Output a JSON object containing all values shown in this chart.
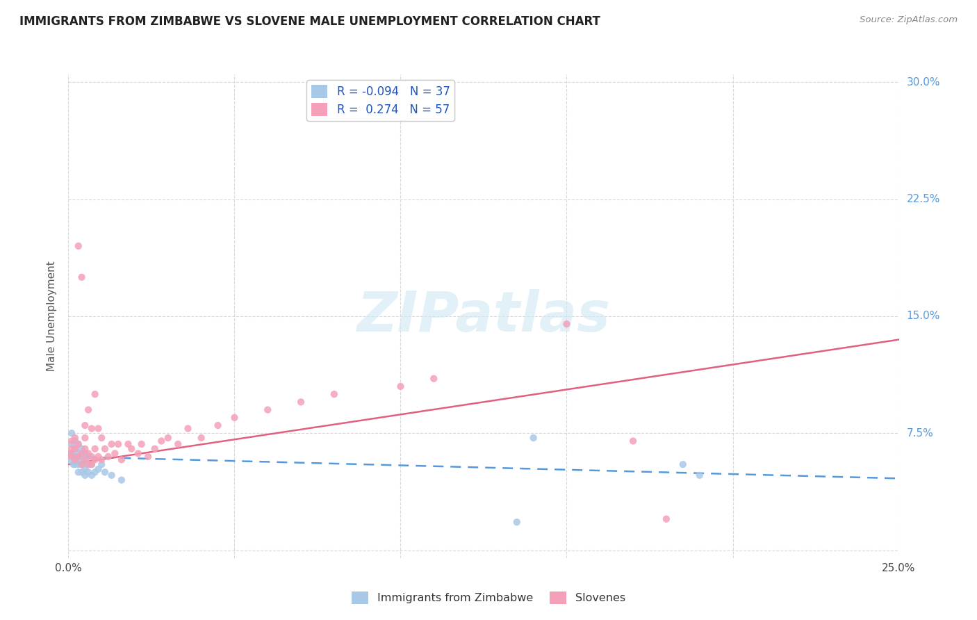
{
  "title": "IMMIGRANTS FROM ZIMBABWE VS SLOVENE MALE UNEMPLOYMENT CORRELATION CHART",
  "source": "Source: ZipAtlas.com",
  "ylabel": "Male Unemployment",
  "legend_label1": "Immigrants from Zimbabwe",
  "legend_label2": "Slovenes",
  "R1": -0.094,
  "N1": 37,
  "R2": 0.274,
  "N2": 57,
  "color_blue": "#a8c8e8",
  "color_pink": "#f4a0b8",
  "line_color_blue": "#5599dd",
  "line_color_pink": "#e06080",
  "watermark_text": "ZIPatlas",
  "xlim": [
    0.0,
    0.25
  ],
  "ylim": [
    -0.005,
    0.305
  ],
  "blue_scatter_x": [
    0.0005,
    0.001,
    0.001,
    0.001,
    0.0015,
    0.002,
    0.002,
    0.002,
    0.002,
    0.003,
    0.003,
    0.003,
    0.003,
    0.003,
    0.004,
    0.004,
    0.004,
    0.004,
    0.005,
    0.005,
    0.005,
    0.005,
    0.006,
    0.006,
    0.006,
    0.007,
    0.007,
    0.008,
    0.009,
    0.01,
    0.011,
    0.013,
    0.016,
    0.14,
    0.185,
    0.135,
    0.19
  ],
  "blue_scatter_y": [
    0.058,
    0.062,
    0.068,
    0.075,
    0.055,
    0.055,
    0.06,
    0.065,
    0.07,
    0.05,
    0.055,
    0.058,
    0.062,
    0.068,
    0.05,
    0.055,
    0.06,
    0.065,
    0.048,
    0.052,
    0.058,
    0.062,
    0.05,
    0.055,
    0.06,
    0.048,
    0.055,
    0.05,
    0.052,
    0.055,
    0.05,
    0.048,
    0.045,
    0.072,
    0.055,
    0.018,
    0.048
  ],
  "pink_scatter_x": [
    0.0005,
    0.001,
    0.001,
    0.001,
    0.002,
    0.002,
    0.002,
    0.003,
    0.003,
    0.003,
    0.004,
    0.004,
    0.004,
    0.005,
    0.005,
    0.005,
    0.005,
    0.006,
    0.006,
    0.006,
    0.007,
    0.007,
    0.007,
    0.008,
    0.008,
    0.008,
    0.009,
    0.009,
    0.01,
    0.01,
    0.011,
    0.012,
    0.013,
    0.014,
    0.015,
    0.016,
    0.018,
    0.019,
    0.021,
    0.022,
    0.024,
    0.026,
    0.028,
    0.03,
    0.033,
    0.036,
    0.04,
    0.045,
    0.05,
    0.06,
    0.07,
    0.08,
    0.1,
    0.11,
    0.15,
    0.17,
    0.18
  ],
  "pink_scatter_y": [
    0.062,
    0.06,
    0.065,
    0.07,
    0.058,
    0.065,
    0.072,
    0.06,
    0.068,
    0.195,
    0.055,
    0.062,
    0.175,
    0.058,
    0.065,
    0.072,
    0.08,
    0.055,
    0.062,
    0.09,
    0.055,
    0.06,
    0.078,
    0.058,
    0.065,
    0.1,
    0.06,
    0.078,
    0.058,
    0.072,
    0.065,
    0.06,
    0.068,
    0.062,
    0.068,
    0.058,
    0.068,
    0.065,
    0.062,
    0.068,
    0.06,
    0.065,
    0.07,
    0.072,
    0.068,
    0.078,
    0.072,
    0.08,
    0.085,
    0.09,
    0.095,
    0.1,
    0.105,
    0.11,
    0.145,
    0.07,
    0.02
  ],
  "background_color": "#ffffff",
  "grid_color": "#d8d8d8",
  "blue_line_x": [
    0.0,
    0.25
  ],
  "blue_line_y": [
    0.06,
    0.046
  ],
  "pink_line_x": [
    0.0,
    0.25
  ],
  "pink_line_y": [
    0.055,
    0.135
  ]
}
